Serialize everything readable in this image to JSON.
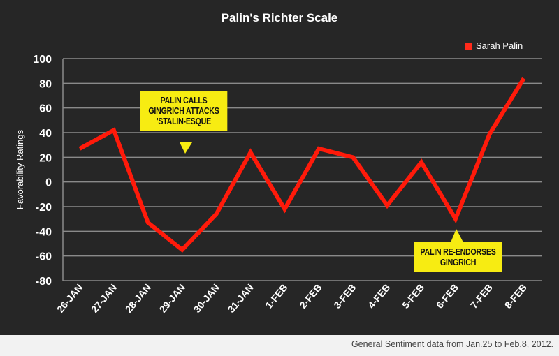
{
  "chart_data": {
    "type": "line",
    "title": "Palin's Richter Scale",
    "ylabel": "Favorability Ratings",
    "xlabel": "",
    "ylim": [
      -80,
      100
    ],
    "yticks": [
      100,
      80,
      60,
      40,
      20,
      0,
      -20,
      -40,
      -60,
      -80
    ],
    "grid": true,
    "legend_position": "top-right",
    "categories": [
      "26-JAN",
      "27-JAN",
      "28-JAN",
      "29-JAN",
      "30-JAN",
      "31-JAN",
      "1-FEB",
      "2-FEB",
      "3-FEB",
      "4-FEB",
      "5-FEB",
      "6-FEB",
      "7-FEB",
      "8-FEB"
    ],
    "series": [
      {
        "name": "Sarah Palin",
        "color": "#ff1a0a",
        "values": [
          27,
          42,
          -33,
          -55,
          -26,
          24,
          -22,
          27,
          20,
          -19,
          16,
          -30,
          39,
          84
        ]
      }
    ],
    "annotations": [
      {
        "text_lines": [
          "PALIN CALLS",
          "GINGRICH ATTACKS",
          "'STALIN-ESQUE"
        ],
        "category": "29-JAN"
      },
      {
        "text_lines": [
          "PALIN RE-ENDORSES",
          "GINGRICH"
        ],
        "category": "6-FEB"
      }
    ],
    "footer": "General Sentiment data from Jan.25 to Feb.8, 2012."
  }
}
